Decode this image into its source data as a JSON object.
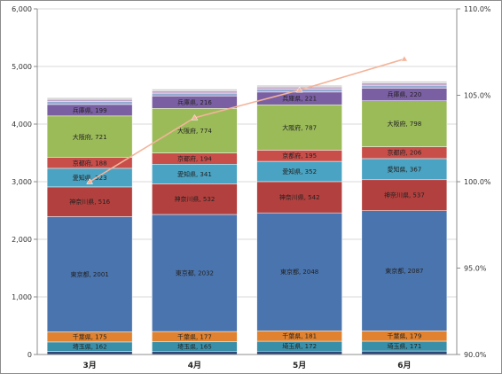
{
  "chart_data": {
    "type": "bar",
    "stacked": true,
    "categories": [
      "3月",
      "4月",
      "5月",
      "6月"
    ],
    "series": [
      {
        "key": "s0",
        "values": [
          55,
          57,
          58,
          60
        ],
        "color": "#2b4a7a"
      },
      {
        "name": "埼玉県",
        "values": [
          162,
          165,
          172,
          171
        ],
        "color": "#3a8fa8"
      },
      {
        "name": "千葉県",
        "values": [
          175,
          177,
          181,
          179
        ],
        "color": "#e0822f"
      },
      {
        "name": "東京都",
        "values": [
          2001,
          2032,
          2048,
          2087
        ],
        "color": "#4a74ae"
      },
      {
        "name": "神奈川県",
        "values": [
          516,
          532,
          542,
          537
        ],
        "color": "#b2403e"
      },
      {
        "name": "愛知県",
        "values": [
          323,
          341,
          352,
          367
        ],
        "color": "#4aa3c2"
      },
      {
        "name": "京都府",
        "values": [
          188,
          194,
          195,
          206
        ],
        "color": "#c84e4a"
      },
      {
        "name": "大阪府",
        "values": [
          721,
          774,
          787,
          798
        ],
        "color": "#9bbb59"
      },
      {
        "name": "兵庫県",
        "values": [
          199,
          216,
          221,
          220
        ],
        "color": "#7b5fa3"
      },
      {
        "key": "s9",
        "values": [
          50,
          50,
          50,
          50
        ],
        "color": "#95aad0"
      },
      {
        "key": "s10",
        "values": [
          40,
          40,
          40,
          40
        ],
        "color": "#c0a3c8"
      },
      {
        "key": "s11",
        "values": [
          30,
          30,
          30,
          30
        ],
        "color": "#d2d2d2"
      }
    ],
    "line": {
      "values": [
        100.0,
        103.7,
        105.3,
        107.1
      ],
      "color": "#f4b49a"
    },
    "y_axis": {
      "min": 0,
      "max": 6000,
      "ticks": [
        "0",
        "1,000",
        "2,000",
        "3,000",
        "4,000",
        "5,000",
        "6,000"
      ]
    },
    "y2_axis": {
      "min": 90,
      "max": 110,
      "ticks": [
        "90.0%",
        "95.0%",
        "100.0%",
        "105.0%",
        "110.0%"
      ]
    },
    "grid": true
  }
}
